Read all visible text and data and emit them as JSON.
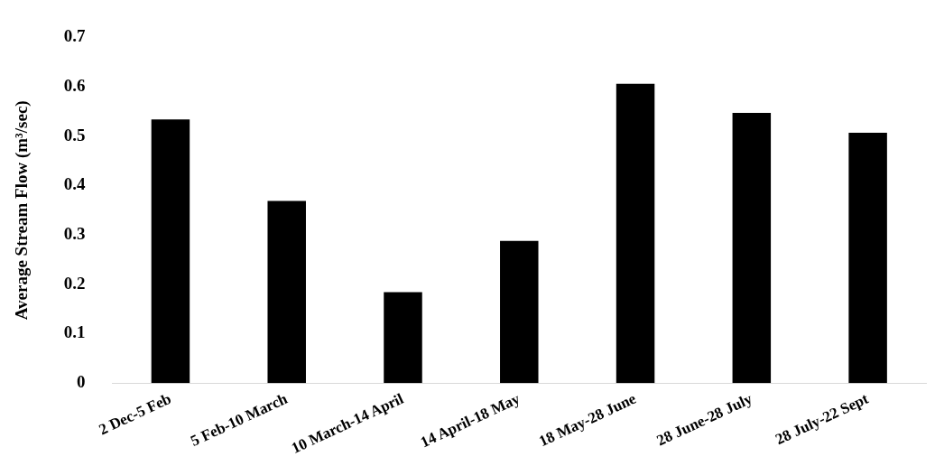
{
  "chart_data": {
    "type": "bar",
    "ylabel": "Average Stream Flow (m³/sec)",
    "categories": [
      "2 Dec-5 Feb",
      "5 Feb-10 March",
      "10 March-14 April",
      "14 April-18 May",
      "18 May-28 June",
      "28 June-28 July",
      "28 July-22 Sept"
    ],
    "values": [
      0.534,
      0.369,
      0.184,
      0.288,
      0.606,
      0.547,
      0.507
    ],
    "color": "#000000",
    "ylim": [
      0,
      0.7
    ],
    "yticks": [
      0,
      0.1,
      0.2,
      0.3,
      0.4,
      0.5,
      0.6,
      0.7
    ],
    "grid": false,
    "legend": false
  }
}
